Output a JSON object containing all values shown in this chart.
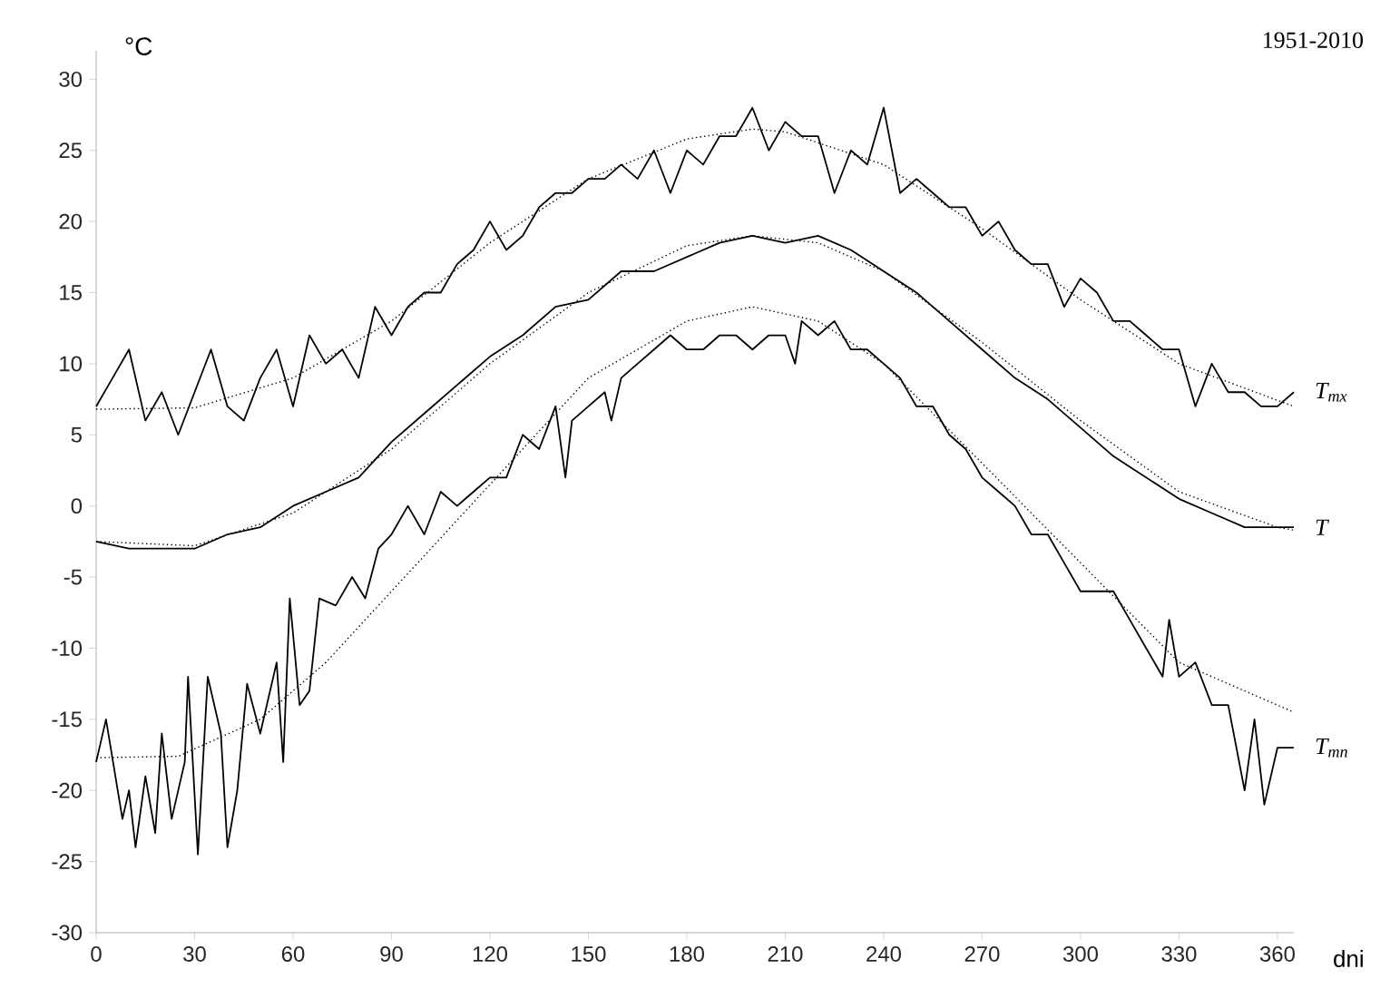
{
  "chart_data": {
    "type": "line",
    "ylabel": "°C",
    "xlabel": "dni",
    "annotations": [
      "1951-2010"
    ],
    "xlim": [
      0,
      365
    ],
    "xticks": [
      0,
      30,
      60,
      90,
      120,
      150,
      180,
      210,
      240,
      270,
      300,
      330,
      360
    ],
    "ylim": [
      -30,
      32
    ],
    "yticks": [
      -30,
      -25,
      -20,
      -15,
      -10,
      -5,
      0,
      5,
      10,
      15,
      20,
      25,
      30
    ],
    "grid": false,
    "legend": false,
    "marker": "none",
    "series": [
      {
        "name": "*T*$_{mx}$",
        "color": "#000000",
        "line_style": "solid",
        "x": [
          0,
          5,
          10,
          15,
          20,
          25,
          30,
          35,
          40,
          45,
          50,
          55,
          60,
          65,
          70,
          75,
          80,
          85,
          90,
          95,
          100,
          105,
          110,
          115,
          120,
          125,
          130,
          135,
          140,
          145,
          150,
          155,
          160,
          165,
          170,
          175,
          180,
          185,
          190,
          195,
          200,
          205,
          210,
          215,
          220,
          225,
          230,
          235,
          240,
          245,
          250,
          255,
          260,
          265,
          270,
          275,
          280,
          285,
          290,
          295,
          300,
          305,
          310,
          315,
          320,
          325,
          330,
          335,
          340,
          345,
          350,
          355,
          360,
          365
        ],
        "values": [
          7,
          9,
          11,
          6,
          8,
          5,
          8,
          11,
          7,
          6,
          9,
          11,
          7,
          12,
          10,
          11,
          9,
          14,
          12,
          14,
          15,
          15,
          17,
          18,
          20,
          18,
          19,
          21,
          22,
          22,
          23,
          23,
          24,
          23,
          25,
          22,
          25,
          24,
          26,
          26,
          28,
          25,
          27,
          26,
          26,
          22,
          25,
          24,
          28,
          22,
          23,
          22,
          21,
          21,
          19,
          20,
          18,
          17,
          17,
          14,
          16,
          15,
          13,
          13,
          12,
          11,
          11,
          7,
          10,
          8,
          8,
          7,
          7,
          8
        ]
      },
      {
        "color": "#000000",
        "line_style": "dotted",
        "x": [
          0,
          30,
          60,
          90,
          120,
          150,
          180,
          200,
          210,
          240,
          270,
          300,
          330,
          365
        ],
        "values": [
          6.8,
          6.9,
          9,
          13,
          18.5,
          23,
          25.8,
          26.5,
          26.3,
          24,
          19.5,
          14.5,
          10,
          7
        ]
      },
      {
        "name": "*T*",
        "color": "#000000",
        "line_style": "solid",
        "x": [
          0,
          10,
          20,
          30,
          40,
          50,
          60,
          70,
          80,
          90,
          100,
          110,
          120,
          130,
          140,
          150,
          160,
          170,
          180,
          190,
          200,
          210,
          220,
          230,
          240,
          250,
          260,
          270,
          280,
          290,
          300,
          310,
          320,
          330,
          340,
          350,
          360,
          365
        ],
        "values": [
          -2.5,
          -3,
          -3,
          -3,
          -2,
          -1.5,
          0,
          1,
          2,
          4.5,
          6.5,
          8.5,
          10.5,
          12,
          14,
          14.5,
          16.5,
          16.5,
          17.5,
          18.5,
          19,
          18.5,
          19,
          18,
          16.5,
          15,
          13,
          11,
          9,
          7.5,
          5.5,
          3.5,
          2,
          0.5,
          -0.5,
          -1.5,
          -1.5,
          -1.5
        ]
      },
      {
        "color": "#000000",
        "line_style": "dotted",
        "x": [
          0,
          30,
          60,
          90,
          120,
          150,
          180,
          200,
          220,
          240,
          270,
          300,
          330,
          360,
          365
        ],
        "values": [
          -2.5,
          -2.8,
          -0.5,
          4,
          10,
          15,
          18.3,
          19,
          18.5,
          16.5,
          11.5,
          6,
          1,
          -1.5,
          -1.7
        ]
      },
      {
        "name": "*T*$_{mn}$",
        "color": "#000000",
        "line_style": "solid",
        "x": [
          0,
          3,
          8,
          10,
          12,
          15,
          18,
          20,
          23,
          27,
          28,
          31,
          34,
          38,
          40,
          43,
          46,
          50,
          55,
          57,
          59,
          62,
          65,
          68,
          73,
          78,
          82,
          86,
          90,
          95,
          100,
          105,
          110,
          115,
          120,
          125,
          130,
          135,
          140,
          143,
          145,
          150,
          155,
          157,
          160,
          165,
          170,
          175,
          180,
          185,
          190,
          195,
          200,
          205,
          210,
          213,
          215,
          220,
          225,
          230,
          235,
          240,
          245,
          250,
          255,
          260,
          265,
          270,
          275,
          280,
          285,
          290,
          295,
          300,
          305,
          310,
          315,
          320,
          325,
          327,
          330,
          335,
          340,
          345,
          350,
          353,
          356,
          360,
          365
        ],
        "values": [
          -18,
          -15,
          -22,
          -20,
          -24,
          -19,
          -23,
          -16,
          -22,
          -18,
          -12,
          -24.5,
          -12,
          -16,
          -24,
          -20,
          -12.5,
          -16,
          -11,
          -18,
          -6.5,
          -14,
          -13,
          -6.5,
          -7,
          -5,
          -6.5,
          -3,
          -2,
          0,
          -2,
          1,
          0,
          1,
          2,
          2,
          5,
          4,
          7,
          2,
          6,
          7,
          8,
          6,
          9,
          10,
          11,
          12,
          11,
          11,
          12,
          12,
          11,
          12,
          12,
          10,
          13,
          12,
          13,
          11,
          11,
          10,
          9,
          7,
          7,
          5,
          4,
          2,
          1,
          0,
          -2,
          -2,
          -4,
          -6,
          -6,
          -6,
          -8,
          -10,
          -12,
          -8,
          -12,
          -11,
          -14,
          -14,
          -20,
          -15,
          -21,
          -17,
          -17
        ]
      },
      {
        "color": "#000000",
        "line_style": "dotted",
        "x": [
          0,
          25,
          50,
          70,
          90,
          120,
          150,
          180,
          200,
          220,
          240,
          270,
          300,
          330,
          365
        ],
        "values": [
          -17.7,
          -17.6,
          -15,
          -11,
          -6,
          1.5,
          9,
          13,
          14,
          13,
          10,
          3,
          -4,
          -11,
          -14.5
        ]
      }
    ]
  }
}
